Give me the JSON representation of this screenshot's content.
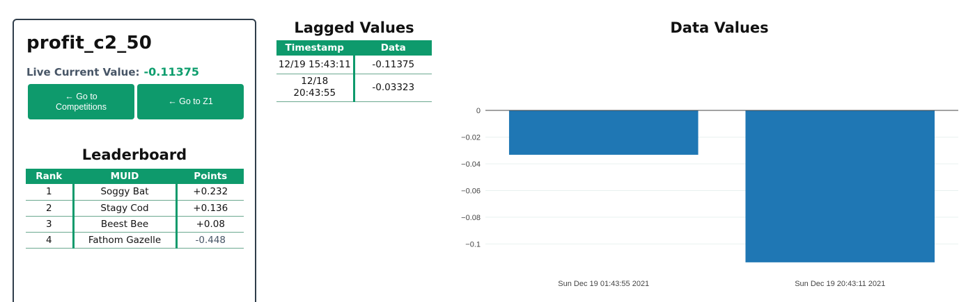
{
  "metric": {
    "title": "profit_c2_50",
    "live_label": "Live Current Value:",
    "live_value": "-0.11375"
  },
  "buttons": {
    "competitions": "← Go to Competitions",
    "z1": "← Go to Z1"
  },
  "leaderboard": {
    "title": "Leaderboard",
    "headers": [
      "Rank",
      "MUID",
      "Points"
    ],
    "rows": [
      {
        "rank": "1",
        "muid": "Soggy Bat",
        "points": "+0.232"
      },
      {
        "rank": "2",
        "muid": "Stagy Cod",
        "points": "+0.136"
      },
      {
        "rank": "3",
        "muid": "Beest Bee",
        "points": "+0.08"
      },
      {
        "rank": "4",
        "muid": "Fathom Gazelle",
        "points": "-0.448"
      }
    ]
  },
  "lagged": {
    "title": "Lagged Values",
    "headers": [
      "Timestamp",
      "Data"
    ],
    "rows": [
      {
        "timestamp": "12/19 15:43:11",
        "data": "-0.11375"
      },
      {
        "timestamp": "12/18 20:43:55",
        "data": "-0.03323"
      }
    ]
  },
  "chart_data": {
    "type": "bar",
    "title": "Data Values",
    "categories": [
      "Sun Dec 19 01:43:55 2021",
      "Sun Dec 19 20:43:11 2021"
    ],
    "values": [
      -0.03323,
      -0.11375
    ],
    "yticks": [
      "0",
      "−0.02",
      "−0.04",
      "−0.06",
      "−0.08",
      "−0.1"
    ],
    "ylim": [
      -0.1185,
      0
    ],
    "bar_color": "#1f77b4",
    "grid": true
  },
  "colors": {
    "accent": "#0e9a6c",
    "live_value": "#0f9e6e",
    "bar": "#1f77b4"
  }
}
